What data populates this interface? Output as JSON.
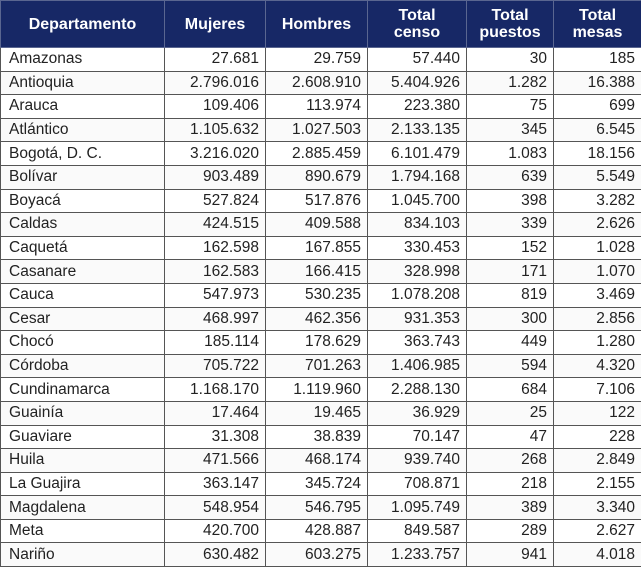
{
  "table": {
    "headers": [
      "Departamento",
      "Mujeres",
      "Hombres",
      "Total censo",
      "Total puestos",
      "Total mesas"
    ],
    "header_color": "#172866",
    "rows": [
      [
        "Amazonas",
        "27.681",
        "29.759",
        "57.440",
        "30",
        "185"
      ],
      [
        "Antioquia",
        "2.796.016",
        "2.608.910",
        "5.404.926",
        "1.282",
        "16.388"
      ],
      [
        "Arauca",
        "109.406",
        "113.974",
        "223.380",
        "75",
        "699"
      ],
      [
        "Atlántico",
        "1.105.632",
        "1.027.503",
        "2.133.135",
        "345",
        "6.545"
      ],
      [
        "Bogotá, D. C.",
        "3.216.020",
        "2.885.459",
        "6.101.479",
        "1.083",
        "18.156"
      ],
      [
        "Bolívar",
        "903.489",
        "890.679",
        "1.794.168",
        "639",
        "5.549"
      ],
      [
        "Boyacá",
        "527.824",
        "517.876",
        "1.045.700",
        "398",
        "3.282"
      ],
      [
        "Caldas",
        "424.515",
        "409.588",
        "834.103",
        "339",
        "2.626"
      ],
      [
        "Caquetá",
        "162.598",
        "167.855",
        "330.453",
        "152",
        "1.028"
      ],
      [
        "Casanare",
        "162.583",
        "166.415",
        "328.998",
        "171",
        "1.070"
      ],
      [
        "Cauca",
        "547.973",
        "530.235",
        "1.078.208",
        "819",
        "3.469"
      ],
      [
        "Cesar",
        "468.997",
        "462.356",
        "931.353",
        "300",
        "2.856"
      ],
      [
        "Chocó",
        "185.114",
        "178.629",
        "363.743",
        "449",
        "1.280"
      ],
      [
        "Córdoba",
        "705.722",
        "701.263",
        "1.406.985",
        "594",
        "4.320"
      ],
      [
        "Cundinamarca",
        "1.168.170",
        "1.119.960",
        "2.288.130",
        "684",
        "7.106"
      ],
      [
        "Guainía",
        "17.464",
        "19.465",
        "36.929",
        "25",
        "122"
      ],
      [
        "Guaviare",
        "31.308",
        "38.839",
        "70.147",
        "47",
        "228"
      ],
      [
        "Huila",
        "471.566",
        "468.174",
        "939.740",
        "268",
        "2.849"
      ],
      [
        "La Guajira",
        "363.147",
        "345.724",
        "708.871",
        "218",
        "2.155"
      ],
      [
        "Magdalena",
        "548.954",
        "546.795",
        "1.095.749",
        "389",
        "3.340"
      ],
      [
        "Meta",
        "420.700",
        "428.887",
        "849.587",
        "289",
        "2.627"
      ],
      [
        "Nariño",
        "630.482",
        "603.275",
        "1.233.757",
        "941",
        "4.018"
      ]
    ]
  }
}
